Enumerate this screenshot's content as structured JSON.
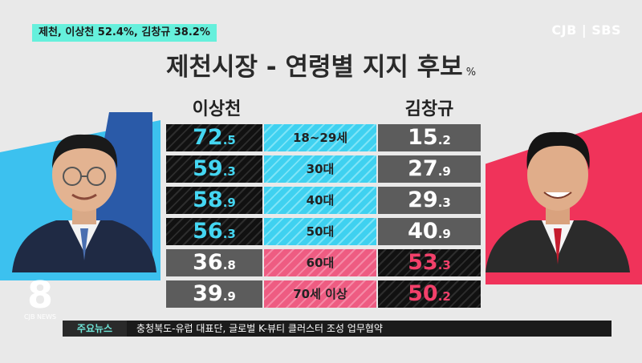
{
  "header_tag": "제천, 이상천 52.4%, 김창규 38.2%",
  "broadcaster": "CJB | SBS",
  "chart_data": {
    "type": "table",
    "title": "제천시장 - 연령별 지지 후보",
    "unit": "%",
    "categories": [
      "18~29세",
      "30대",
      "40대",
      "50대",
      "60대",
      "70세 이상"
    ],
    "series": [
      {
        "name": "이상천",
        "values": [
          72.5,
          59.3,
          58.9,
          56.3,
          36.8,
          39.9
        ]
      },
      {
        "name": "김창규",
        "values": [
          15.2,
          27.9,
          29.3,
          40.9,
          53.3,
          50.2
        ]
      }
    ]
  },
  "colors": {
    "left_accent": "#44d6f2",
    "right_accent": "#f2406a",
    "tag_bg": "#66f0dc"
  },
  "logo": {
    "numeral": "8",
    "sub": "CJB NEWS"
  },
  "ticker": {
    "label": "주요뉴스",
    "text": "충청북도-유럽 대표단, 글로벌 K-뷰티 클러스터 조성 업무협약"
  }
}
